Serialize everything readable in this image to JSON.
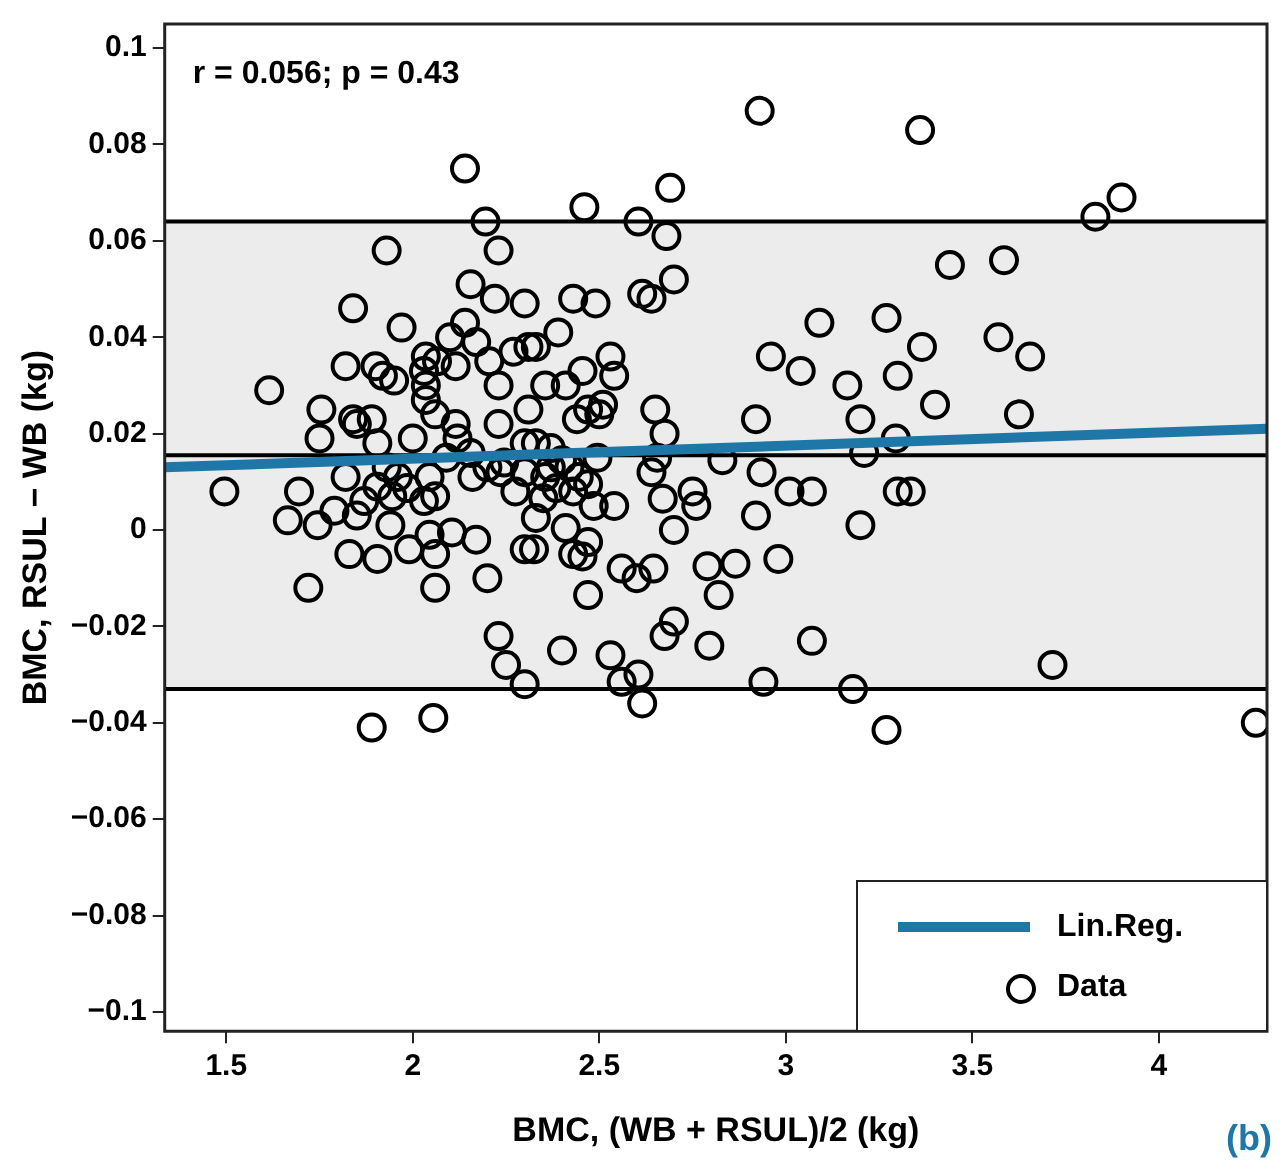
{
  "chart_data": {
    "type": "scatter",
    "xlabel": "BMC, (WB + RSUL)/2 (kg)",
    "ylabel": "BMC, RSUL − WB (kg)",
    "xlim": [
      1.335,
      4.29
    ],
    "ylim": [
      -0.104,
      0.105
    ],
    "xticks": [
      1.5,
      2,
      2.5,
      3,
      3.5,
      4
    ],
    "yticks": [
      {
        "value": -0.1,
        "label": "−0.1"
      },
      {
        "value": -0.08,
        "label": "−0.08"
      },
      {
        "value": -0.06,
        "label": "−0.06"
      },
      {
        "value": -0.04,
        "label": "−0.04"
      },
      {
        "value": -0.02,
        "label": "−0.02"
      },
      0,
      0.02,
      0.04,
      0.06,
      0.08,
      0.1
    ],
    "grid": false,
    "legend": "bottom right",
    "bands": [
      {
        "axis": "y",
        "from": -0.033,
        "to": 0.064,
        "color": "#ececec"
      }
    ],
    "ref_lines": [
      {
        "axis": "y",
        "value": 0.064,
        "color": "#000000"
      },
      {
        "axis": "y",
        "value": 0.0155,
        "color": "#000000"
      },
      {
        "axis": "y",
        "value": -0.033,
        "color": "#000000"
      }
    ],
    "annotations": [
      "r = 0.056; p = 0.43",
      "(b)"
    ],
    "series": [
      {
        "name": "Lin.Reg.",
        "type": "line",
        "color": "#1f77a8",
        "x": [
          1.335,
          4.29
        ],
        "values": [
          0.013,
          0.021
        ]
      },
      {
        "name": "Data",
        "marker": "circle",
        "color": "#000000",
        "x": [
          2.14,
          2.195,
          1.93,
          2.23,
          2.155,
          2.22,
          2.3,
          1.84,
          1.97,
          2.14,
          2.1,
          2.17,
          2.27,
          2.31,
          1.82,
          1.9,
          1.92,
          1.95,
          2.035,
          2.065,
          2.03,
          2.115,
          2.205,
          2.035,
          2.035,
          2.23,
          1.615,
          1.755,
          1.84,
          1.89,
          2.31,
          2.93,
          2.69,
          2.46,
          2.605,
          2.68,
          2.7,
          2.615,
          2.64,
          2.43,
          2.49,
          2.39,
          2.33,
          3.09,
          3.27,
          2.96,
          3.04,
          3.165,
          3.3,
          2.53,
          2.54,
          2.455,
          2.41,
          2.355,
          2.51,
          2.47,
          2.65,
          2.92,
          3.2,
          3.36,
          3.9,
          3.83,
          3.44,
          3.585,
          3.365,
          3.57,
          3.655,
          3.4,
          3.625,
          1.85,
          1.905,
          1.75,
          2.0,
          2.115,
          2.12,
          2.23,
          2.3,
          2.06,
          1.495,
          1.695,
          1.82,
          1.905,
          1.945,
          1.96,
          2.045,
          2.06,
          2.16,
          2.235,
          2.3,
          1.665,
          1.745,
          1.79,
          1.85,
          1.94,
          1.83,
          1.905,
          1.99,
          2.045,
          2.06,
          2.105,
          2.17,
          2.2,
          2.3,
          1.72,
          2.06,
          2.23,
          2.25,
          2.3,
          1.89,
          2.055,
          2.675,
          2.5,
          2.44,
          2.33,
          2.495,
          2.655,
          2.64,
          2.83,
          2.935,
          3.21,
          3.01,
          3.07,
          3.295,
          3.3,
          2.37,
          2.42,
          2.355,
          2.43,
          2.485,
          2.54,
          2.67,
          2.75,
          2.76,
          2.92,
          2.7,
          3.2,
          2.33,
          2.41,
          2.47,
          2.43,
          2.455,
          2.325,
          2.56,
          2.6,
          2.645,
          2.79,
          2.865,
          2.98,
          2.47,
          2.82,
          2.7,
          2.675,
          2.795,
          3.07,
          2.4,
          2.53,
          2.605,
          2.56,
          2.615,
          2.94,
          3.18,
          3.27,
          3.335,
          3.715,
          4.26,
          2.37,
          2.4,
          2.445,
          2.47,
          2.385,
          2.35,
          2.155,
          2.2,
          2.09,
          2.245,
          2.275,
          2.03,
          1.985,
          1.87,
          1.93
        ],
        "values": [
          0.075,
          0.064,
          0.058,
          0.058,
          0.051,
          0.048,
          0.047,
          0.046,
          0.042,
          0.043,
          0.04,
          0.039,
          0.037,
          0.038,
          0.034,
          0.034,
          0.032,
          0.031,
          0.036,
          0.035,
          0.033,
          0.034,
          0.035,
          0.03,
          0.027,
          0.03,
          0.029,
          0.025,
          0.023,
          0.023,
          0.025,
          0.087,
          0.071,
          0.067,
          0.064,
          0.061,
          0.052,
          0.049,
          0.048,
          0.048,
          0.047,
          0.041,
          0.038,
          0.043,
          0.044,
          0.036,
          0.033,
          0.03,
          0.032,
          0.036,
          0.032,
          0.033,
          0.03,
          0.03,
          0.026,
          0.025,
          0.025,
          0.023,
          0.023,
          0.083,
          0.069,
          0.065,
          0.055,
          0.056,
          0.038,
          0.04,
          0.036,
          0.026,
          0.024,
          0.022,
          0.018,
          0.019,
          0.019,
          0.022,
          0.019,
          0.022,
          0.018,
          0.024,
          0.008,
          0.008,
          0.011,
          0.009,
          0.007,
          0.011,
          0.011,
          0.007,
          0.011,
          0.012,
          0.012,
          0.002,
          0.001,
          0.004,
          0.003,
          0.001,
          -0.005,
          -0.006,
          -0.004,
          -0.001,
          -0.005,
          -0.0005,
          -0.002,
          -0.01,
          -0.004,
          -0.012,
          -0.012,
          -0.022,
          -0.028,
          -0.032,
          -0.041,
          -0.039,
          0.02,
          0.024,
          0.023,
          0.018,
          0.015,
          0.015,
          0.012,
          0.0145,
          0.012,
          0.016,
          0.008,
          0.008,
          0.019,
          0.008,
          0.013,
          0.013,
          0.011,
          0.008,
          0.005,
          0.005,
          0.0065,
          0.008,
          0.005,
          0.003,
          0.0,
          0.001,
          0.0025,
          0.0004,
          -0.0025,
          -0.005,
          -0.0055,
          -0.004,
          -0.008,
          -0.01,
          -0.008,
          -0.0075,
          -0.007,
          -0.006,
          -0.0135,
          -0.0135,
          -0.019,
          -0.022,
          -0.024,
          -0.023,
          -0.025,
          -0.026,
          -0.03,
          -0.0315,
          -0.036,
          -0.0315,
          -0.033,
          -0.0415,
          0.008,
          -0.028,
          -0.04,
          0.017,
          0.0145,
          0.011,
          0.0095,
          0.0087,
          0.0066,
          0.016,
          0.013,
          0.015,
          0.014,
          0.008,
          0.006,
          0.0087,
          0.006,
          0.013
        ]
      }
    ]
  }
}
